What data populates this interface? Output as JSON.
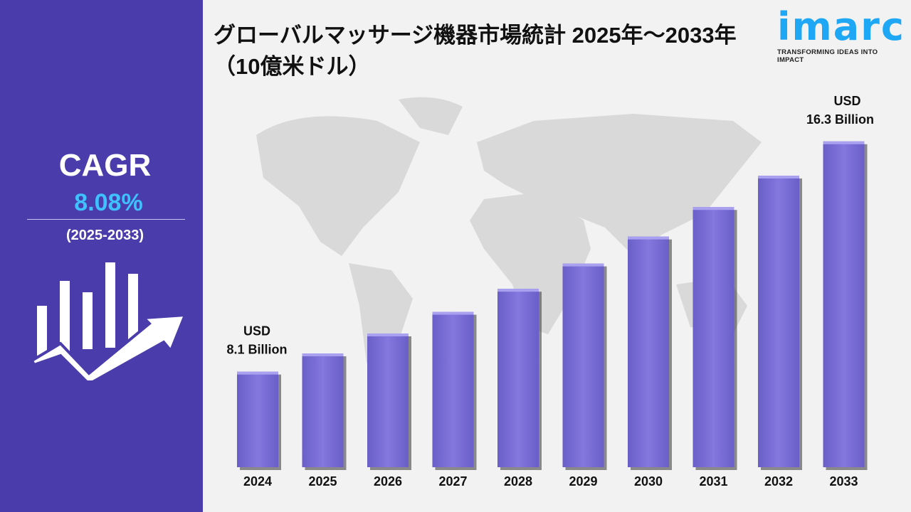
{
  "title": "グローバルマッサージ機器市場統計 2025年～2033年（10億米ドル）",
  "logo": {
    "name": "imarc",
    "tagline": "TRANSFORMING IDEAS INTO IMPACT"
  },
  "cagr": {
    "label": "CAGR",
    "value": "8.08%",
    "period": "(2025-2033)"
  },
  "colors": {
    "panel": "#4a3dab",
    "bar": "#7b6fd8",
    "accent": "#3fc0ff",
    "logo": "#1ea7f5"
  },
  "chart_data": {
    "type": "bar",
    "title": "グローバルマッサージ機器市場統計 2025年～2033年（10億米ドル）",
    "categories": [
      "2024",
      "2025",
      "2026",
      "2027",
      "2028",
      "2029",
      "2030",
      "2031",
      "2032",
      "2033"
    ],
    "values": [
      8.1,
      8.75,
      9.46,
      10.23,
      11.05,
      11.95,
      12.91,
      13.96,
      15.08,
      16.3
    ],
    "ylim": [
      4.7,
      17
    ],
    "xlabel": "",
    "ylabel": "",
    "annotations": [
      {
        "category": "2024",
        "line1": "USD",
        "line2": "8.1 Billion"
      },
      {
        "category": "2033",
        "line1": "USD",
        "line2": "16.3 Billion"
      }
    ]
  }
}
